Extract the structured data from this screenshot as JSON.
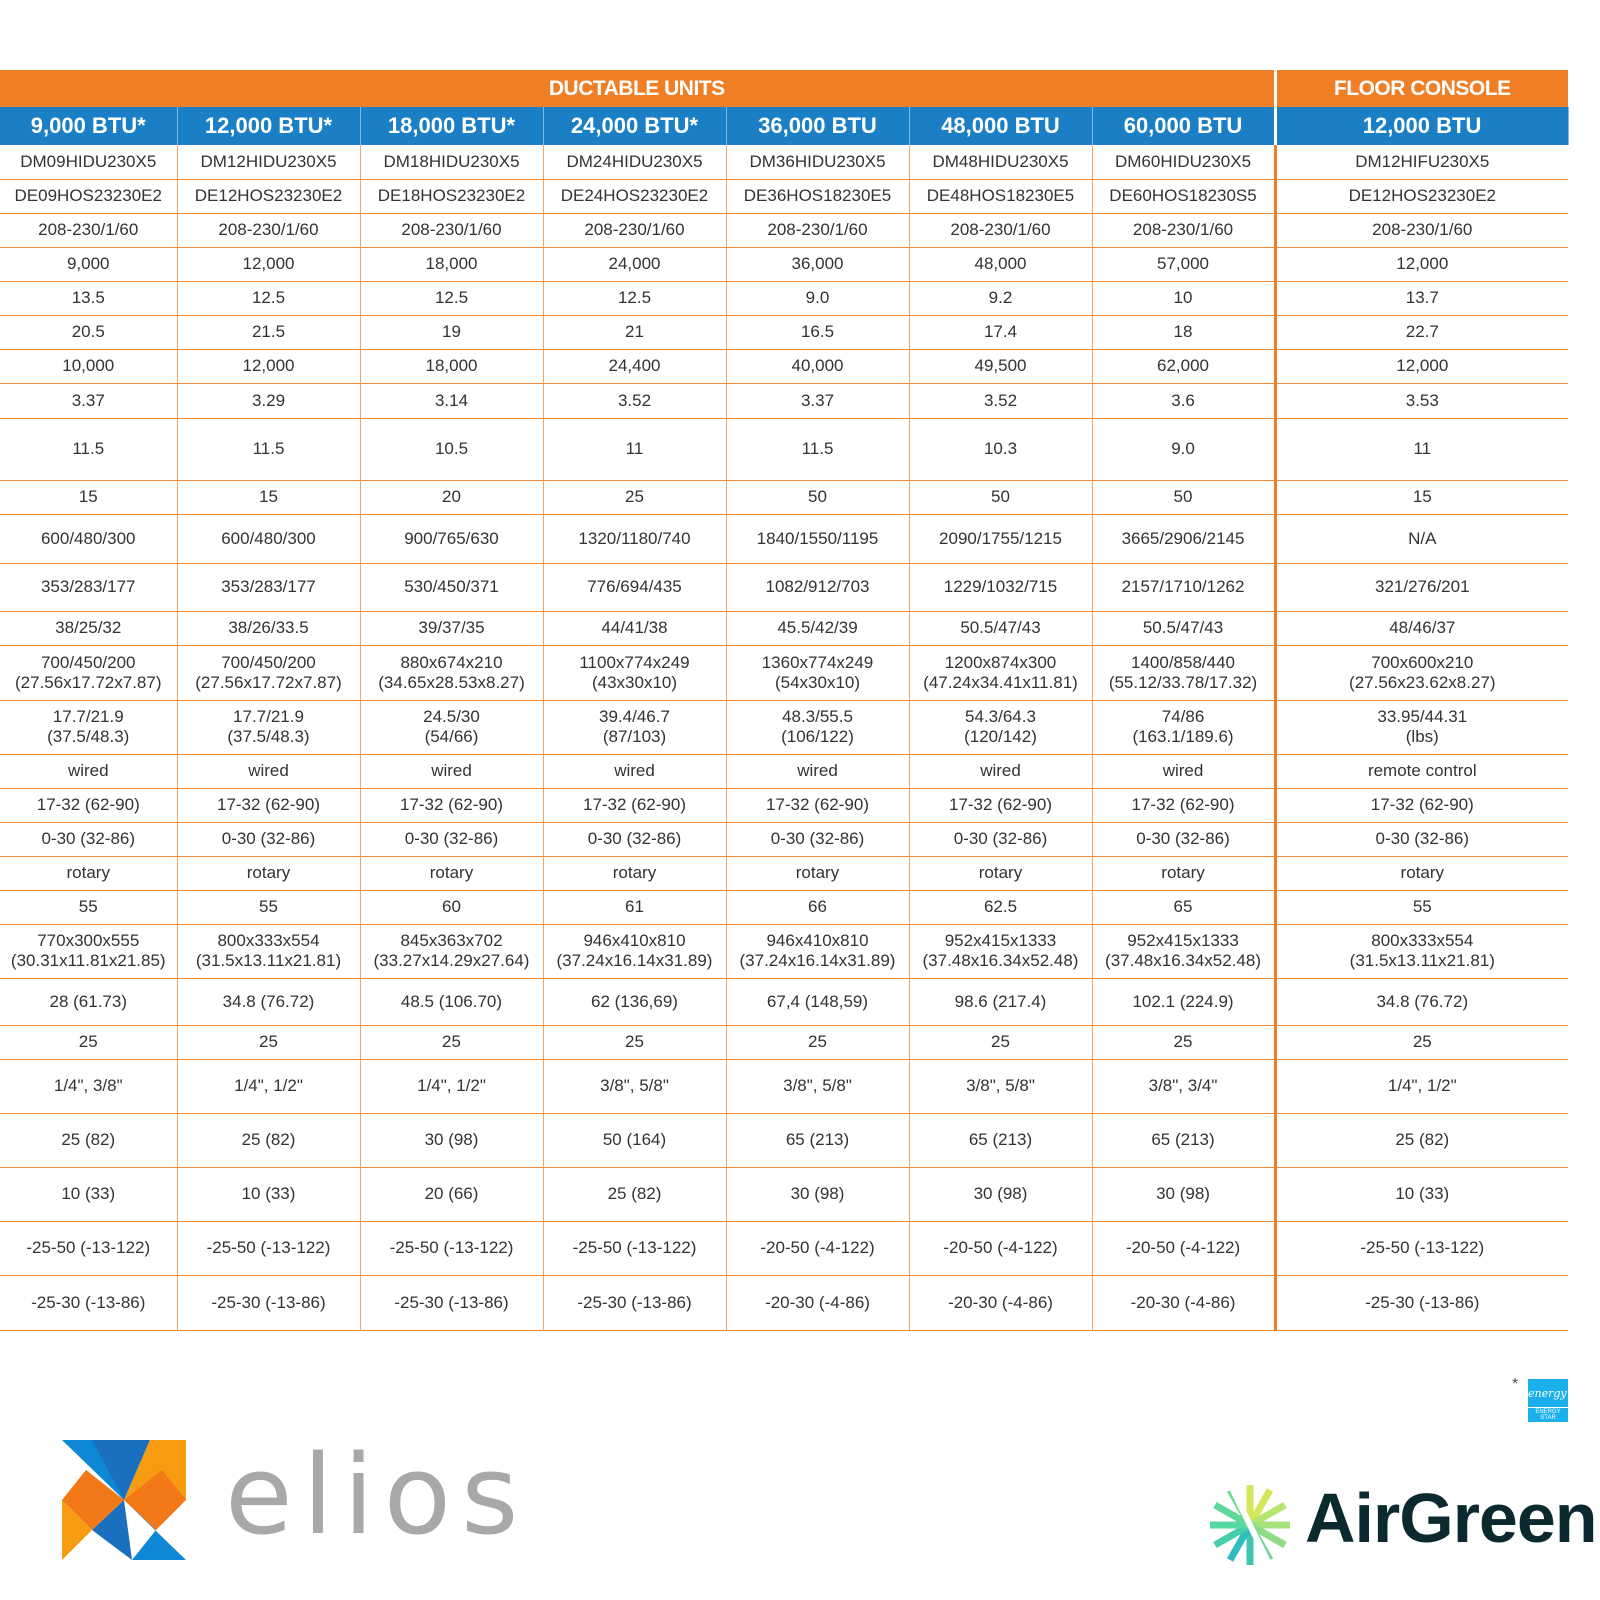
{
  "groups": {
    "ductable": "DUCTABLE UNITS",
    "floor_console": "FLOOR CONSOLE"
  },
  "capacities": [
    "9,000 BTU*",
    "12,000 BTU*",
    "18,000 BTU*",
    "24,000 BTU*",
    "36,000 BTU",
    "48,000 BTU",
    "60,000 BTU",
    "12,000 BTU"
  ],
  "rows": [
    [
      "DM09HIDU230X5",
      "DM12HIDU230X5",
      "DM18HIDU230X5",
      "DM24HIDU230X5",
      "DM36HIDU230X5",
      "DM48HIDU230X5",
      "DM60HIDU230X5",
      "DM12HIFU230X5"
    ],
    [
      "DE09HOS23230E2",
      "DE12HOS23230E2",
      "DE18HOS23230E2",
      "DE24HOS23230E2",
      "DE36HOS18230E5",
      "DE48HOS18230E5",
      "DE60HOS18230S5",
      "DE12HOS23230E2"
    ],
    [
      "208-230/1/60",
      "208-230/1/60",
      "208-230/1/60",
      "208-230/1/60",
      "208-230/1/60",
      "208-230/1/60",
      "208-230/1/60",
      "208-230/1/60"
    ],
    [
      "9,000",
      "12,000",
      "18,000",
      "24,000",
      "36,000",
      "48,000",
      "57,000",
      "12,000"
    ],
    [
      "13.5",
      "12.5",
      "12.5",
      "12.5",
      "9.0",
      "9.2",
      "10",
      "13.7"
    ],
    [
      "20.5",
      "21.5",
      "19",
      "21",
      "16.5",
      "17.4",
      "18",
      "22.7"
    ],
    [
      "10,000",
      "12,000",
      "18,000",
      "24,400",
      "40,000",
      "49,500",
      "62,000",
      "12,000"
    ],
    [
      "3.37",
      "3.29",
      "3.14",
      "3.52",
      "3.37",
      "3.52",
      "3.6",
      "3.53"
    ],
    [
      "11.5",
      "11.5",
      "10.5",
      "11",
      "11.5",
      "10.3",
      "9.0",
      "11"
    ],
    [
      "15",
      "15",
      "20",
      "25",
      "50",
      "50",
      "50",
      "15"
    ],
    [
      "600/480/300",
      "600/480/300",
      "900/765/630",
      "1320/1180/740",
      "1840/1550/1195",
      "2090/1755/1215",
      "3665/2906/2145",
      "N/A"
    ],
    [
      "353/283/177",
      "353/283/177",
      "530/450/371",
      "776/694/435",
      "1082/912/703",
      "1229/1032/715",
      "2157/1710/1262",
      "321/276/201"
    ],
    [
      "38/25/32",
      "38/26/33.5",
      "39/37/35",
      "44/41/38",
      "45.5/42/39",
      "50.5/47/43",
      "50.5/47/43",
      "48/46/37"
    ],
    [
      "700/450/200\n(27.56x17.72x7.87)",
      "700/450/200\n(27.56x17.72x7.87)",
      "880x674x210\n(34.65x28.53x8.27)",
      "1100x774x249\n(43x30x10)",
      "1360x774x249\n(54x30x10)",
      "1200x874x300\n(47.24x34.41x11.81)",
      "1400/858/440\n(55.12/33.78/17.32)",
      "700x600x210\n(27.56x23.62x8.27)"
    ],
    [
      "17.7/21.9\n(37.5/48.3)",
      "17.7/21.9\n(37.5/48.3)",
      "24.5/30\n(54/66)",
      "39.4/46.7\n(87/103)",
      "48.3/55.5\n(106/122)",
      "54.3/64.3\n(120/142)",
      "74/86\n(163.1/189.6)",
      "33.95/44.31\n(lbs)"
    ],
    [
      "wired",
      "wired",
      "wired",
      "wired",
      "wired",
      "wired",
      "wired",
      "remote control"
    ],
    [
      "17-32 (62-90)",
      "17-32 (62-90)",
      "17-32 (62-90)",
      "17-32 (62-90)",
      "17-32 (62-90)",
      "17-32 (62-90)",
      "17-32 (62-90)",
      "17-32 (62-90)"
    ],
    [
      "0-30 (32-86)",
      "0-30 (32-86)",
      "0-30 (32-86)",
      "0-30 (32-86)",
      "0-30 (32-86)",
      "0-30 (32-86)",
      "0-30 (32-86)",
      "0-30 (32-86)"
    ],
    [
      "rotary",
      "rotary",
      "rotary",
      "rotary",
      "rotary",
      "rotary",
      "rotary",
      "rotary"
    ],
    [
      "55",
      "55",
      "60",
      "61",
      "66",
      "62.5",
      "65",
      "55"
    ],
    [
      "770x300x555\n(30.31x11.81x21.85)",
      "800x333x554\n(31.5x13.11x21.81)",
      "845x363x702\n(33.27x14.29x27.64)",
      "946x410x810\n(37.24x16.14x31.89)",
      "946x410x810\n(37.24x16.14x31.89)",
      "952x415x1333\n(37.48x16.34x52.48)",
      "952x415x1333\n(37.48x16.34x52.48)",
      "800x333x554\n(31.5x13.11x21.81)"
    ],
    [
      "28 (61.73)",
      "34.8 (76.72)",
      "48.5 (106.70)",
      "62 (136,69)",
      "67,4 (148,59)",
      "98.6 (217.4)",
      "102.1 (224.9)",
      "34.8 (76.72)"
    ],
    [
      "25",
      "25",
      "25",
      "25",
      "25",
      "25",
      "25",
      "25"
    ],
    [
      "1/4\", 3/8\"",
      "1/4\", 1/2\"",
      "1/4\", 1/2\"",
      "3/8\", 5/8\"",
      "3/8\", 5/8\"",
      "3/8\", 5/8\"",
      "3/8\", 3/4\"",
      "1/4\", 1/2\""
    ],
    [
      "25 (82)",
      "25 (82)",
      "30 (98)",
      "50 (164)",
      "65 (213)",
      "65 (213)",
      "65 (213)",
      "25 (82)"
    ],
    [
      "10 (33)",
      "10 (33)",
      "20 (66)",
      "25 (82)",
      "30 (98)",
      "30 (98)",
      "30 (98)",
      "10 (33)"
    ],
    [
      "-25-50 (-13-122)",
      "-25-50 (-13-122)",
      "-25-50 (-13-122)",
      "-25-50 (-13-122)",
      "-20-50 (-4-122)",
      "-20-50 (-4-122)",
      "-20-50 (-4-122)",
      "-25-50 (-13-122)"
    ],
    [
      "-25-30 (-13-86)",
      "-25-30 (-13-86)",
      "-25-30 (-13-86)",
      "-25-30 (-13-86)",
      "-20-30 (-4-86)",
      "-20-30 (-4-86)",
      "-20-30 (-4-86)",
      "-25-30 (-13-86)"
    ]
  ],
  "footnote_marker": "*",
  "energy_star": {
    "label": "ENERGY STAR",
    "script": "energy",
    "color": "#1bb0ec"
  },
  "logos": {
    "elios": "elios",
    "airgreen": "AirGreen"
  },
  "colors": {
    "orange": "#ee7f26",
    "blue": "#1a7fc4",
    "text": "#333333"
  }
}
